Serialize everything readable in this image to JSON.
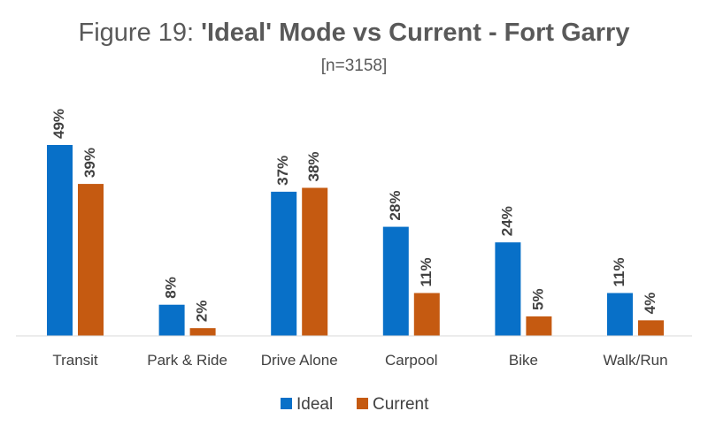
{
  "chart_data": {
    "type": "bar",
    "title_prefix": "Figure 19: ",
    "title_main": "'Ideal' Mode vs Current - Fort Garry",
    "subtitle": "[n=3158]",
    "categories": [
      "Transit",
      "Park & Ride",
      "Drive Alone",
      "Carpool",
      "Bike",
      "Walk/Run"
    ],
    "series": [
      {
        "name": "Ideal",
        "values": [
          49,
          8,
          37,
          28,
          24,
          11
        ],
        "labels": [
          "49%",
          "8%",
          "37%",
          "28%",
          "24%",
          "11%"
        ],
        "color": "#0870c8"
      },
      {
        "name": "Current",
        "values": [
          39,
          2,
          38,
          11,
          5,
          4
        ],
        "labels": [
          "39%",
          "2%",
          "38%",
          "11%",
          "5%",
          "4%"
        ],
        "color": "#c55a11"
      }
    ],
    "ylim": [
      0,
      49
    ],
    "value_unit": "%",
    "grid": false,
    "legend_position": "bottom"
  }
}
